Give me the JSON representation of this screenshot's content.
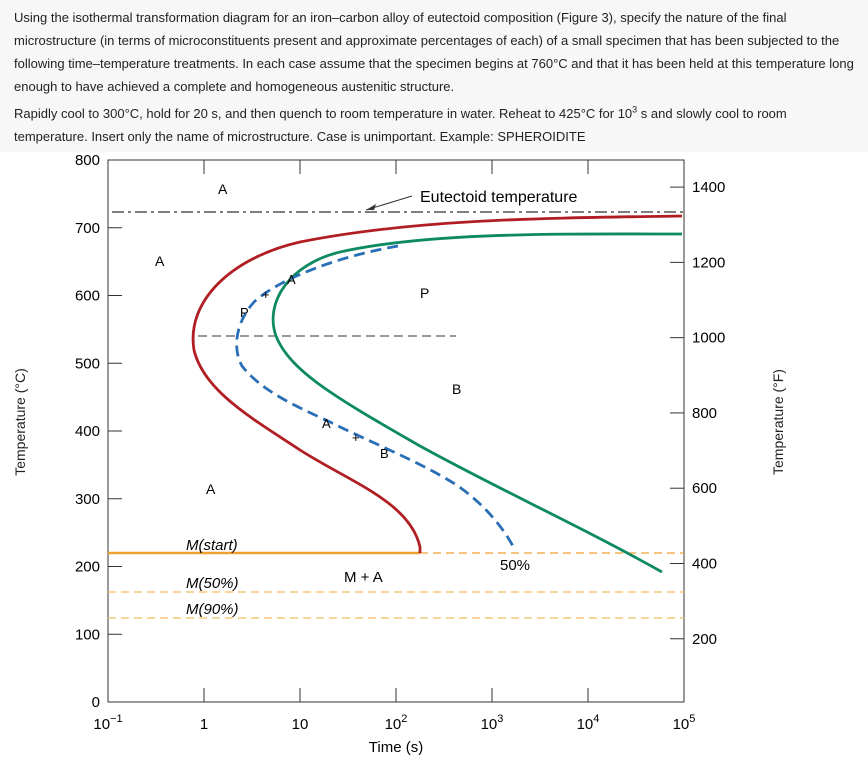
{
  "question": {
    "paragraph1": "Using the isothermal transformation diagram for an iron–carbon alloy of eutectoid composition (Figure 3), specify the nature of the final microstructure (in terms of microconstituents present and approximate percentages of each) of a small specimen that has been subjected to the following time–temperature treatments. In each case assume that the specimen begins at 760°C and that it has been held at this temperature long enough to have achieved a complete and homogeneous austenitic structure.",
    "paragraph2_a": "Rapidly cool to 300°C, hold for 20 s, and then quench to room temperature in water. Reheat to 425°C for 10",
    "paragraph2_sup": "3",
    "paragraph2_b": " s and slowly cool to room temperature. Insert only the name of microstructure. Case is unimportant. Example: SPHEROIDITE"
  },
  "axes": {
    "left_label": "Temperature (°C)",
    "right_label": "Temperature (°F)",
    "x_label": "Time (s)",
    "left_ticks": [
      "0",
      "100",
      "200",
      "300",
      "400",
      "500",
      "600",
      "700",
      "800"
    ],
    "right_ticks": [
      "200",
      "400",
      "600",
      "800",
      "1000",
      "1200",
      "1400"
    ],
    "x_ticks": [
      {
        "base": "10",
        "exp": "−1"
      },
      {
        "base": "1",
        "exp": ""
      },
      {
        "base": "10",
        "exp": ""
      },
      {
        "base": "10",
        "exp": "2"
      },
      {
        "base": "10",
        "exp": "3"
      },
      {
        "base": "10",
        "exp": "4"
      },
      {
        "base": "10",
        "exp": "5"
      }
    ]
  },
  "labels": {
    "eutectoid": "Eutectoid temperature",
    "a_top": "A",
    "a_left": "A",
    "a_ap": "A",
    "plus_ap": "+",
    "p_ap": "P",
    "p_mid": "P",
    "b_mid": "B",
    "a_ab": "A",
    "plus_ab": "+",
    "b_ab": "B",
    "a_low": "A",
    "m_start": "M(start)",
    "m50": "M(50%)",
    "m90": "M(90%)",
    "m_plus_a": "M + A",
    "fifty": "50%"
  },
  "colors": {
    "start_curve": "#b01e23",
    "finish_curve": "#0e8a62",
    "fifty_curve": "#2a6fb5",
    "martensite": "#f0a030",
    "martensite_light": "#f6c77a"
  }
}
